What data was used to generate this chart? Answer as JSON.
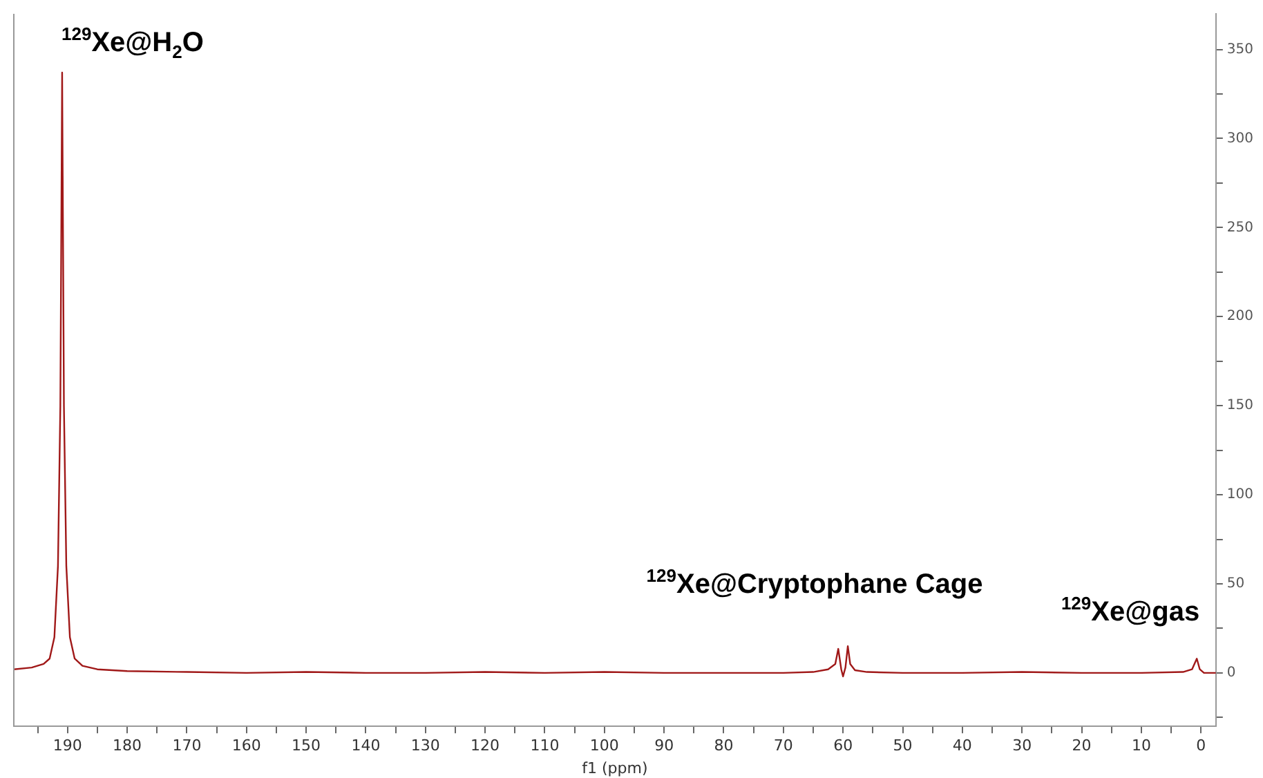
{
  "chart_data": {
    "type": "line",
    "xlabel": "f1 (ppm)",
    "x": [
      199,
      196,
      194,
      193,
      192.2,
      191.6,
      191.2,
      190.9,
      190.6,
      190.2,
      189.6,
      188.8,
      187.5,
      185,
      180,
      170,
      160,
      150,
      140,
      130,
      120,
      110,
      100,
      90,
      80,
      70,
      65,
      62.5,
      61.3,
      60.8,
      60.3,
      60,
      59.6,
      59.2,
      58.8,
      58,
      56,
      50,
      40,
      30,
      20,
      10,
      3,
      1.5,
      0.7,
      0.2,
      -0.5,
      -2.5
    ],
    "series": [
      {
        "color": "#a01818",
        "values": [
          2,
          3,
          5,
          8,
          20,
          60,
          150,
          337,
          150,
          60,
          20,
          8,
          4,
          2,
          1,
          0.5,
          0,
          0.5,
          0,
          0,
          0.5,
          0,
          0.5,
          0,
          0,
          0,
          0.5,
          2,
          5,
          13.5,
          2,
          -2,
          3,
          15,
          5,
          1.5,
          0.5,
          0,
          0,
          0.5,
          0,
          0,
          0.5,
          2,
          8,
          2,
          0,
          0
        ]
      }
    ],
    "xlim": [
      199,
      -2.5
    ],
    "xticks": [
      190,
      {
        "value": 185,
        "label": null
      },
      180,
      {
        "value": 175,
        "label": null
      },
      170,
      {
        "value": 165,
        "label": null
      },
      160,
      {
        "value": 155,
        "label": null
      },
      150,
      {
        "value": 145,
        "label": null
      },
      140,
      {
        "value": 135,
        "label": null
      },
      130,
      {
        "value": 125,
        "label": null
      },
      120,
      {
        "value": 115,
        "label": null
      },
      110,
      {
        "value": 105,
        "label": null
      },
      100,
      {
        "value": 95,
        "label": null
      },
      90,
      {
        "value": 85,
        "label": null
      },
      80,
      {
        "value": 75,
        "label": null
      },
      70,
      {
        "value": 65,
        "label": null
      },
      60,
      {
        "value": 55,
        "label": null
      },
      50,
      {
        "value": 45,
        "label": null
      },
      40,
      {
        "value": 35,
        "label": null
      },
      30,
      {
        "value": 25,
        "label": null
      },
      20,
      {
        "value": 15,
        "label": null
      },
      10,
      {
        "value": 5,
        "label": null
      },
      0,
      {
        "value": 195,
        "label": null
      }
    ],
    "ylim": [
      -30,
      370
    ],
    "yticks": [
      {
        "value": -25,
        "label": null
      },
      0,
      {
        "value": 25,
        "label": null
      },
      50,
      {
        "value": 75,
        "label": null
      },
      100,
      {
        "value": 125,
        "label": null
      },
      150,
      {
        "value": 175,
        "label": null
      },
      200,
      {
        "value": 225,
        "label": null
      },
      250,
      {
        "value": 275,
        "label": null
      },
      300,
      {
        "value": 325,
        "label": null
      },
      350
    ],
    "grid": false,
    "legend": false,
    "marker": "none",
    "line_style": "solid",
    "annotations": [
      "$^{129}$Xe@H$_{2}$O",
      "$^{129}$Xe@Cryptophane Cage",
      "$^{129}$Xe@gas"
    ]
  }
}
